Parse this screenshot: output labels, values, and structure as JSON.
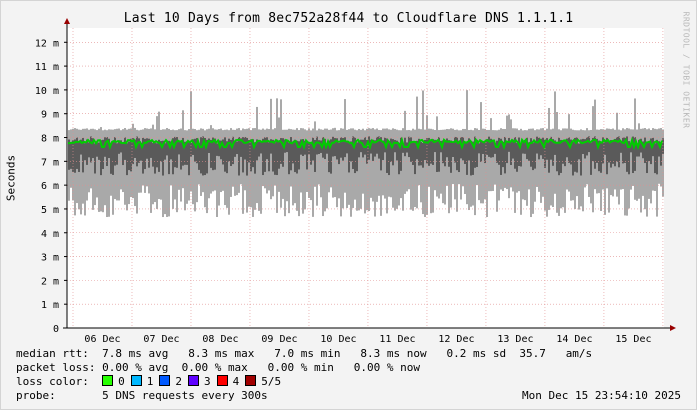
{
  "chart_data": {
    "type": "area",
    "title": "Last 10 Days from 8ec752a28f44 to Cloudflare DNS 1.1.1.1",
    "ylabel": "Seconds",
    "xlabel": "",
    "ylim": [
      0,
      12.6
    ],
    "y_ticks": [
      {
        "value": 0,
        "label": "0"
      },
      {
        "value": 1,
        "label": "1 m"
      },
      {
        "value": 2,
        "label": "2 m"
      },
      {
        "value": 3,
        "label": "3 m"
      },
      {
        "value": 4,
        "label": "4 m"
      },
      {
        "value": 5,
        "label": "5 m"
      },
      {
        "value": 6,
        "label": "6 m"
      },
      {
        "value": 7,
        "label": "7 m"
      },
      {
        "value": 8,
        "label": "8 m"
      },
      {
        "value": 9,
        "label": "9 m"
      },
      {
        "value": 10,
        "label": "10 m"
      },
      {
        "value": 11,
        "label": "11 m"
      },
      {
        "value": 12,
        "label": "12 m"
      }
    ],
    "categories": [
      "06 Dec",
      "07 Dec",
      "08 Dec",
      "09 Dec",
      "10 Dec",
      "11 Dec",
      "12 Dec",
      "13 Dec",
      "14 Dec",
      "15 Dec"
    ],
    "grid": true,
    "median_ms_approx": 7.8,
    "ping_band_ms_approx": {
      "low": 5.5,
      "high": 8.3
    },
    "colors": {
      "median_line": "#00cc00",
      "smoke_light": "#a9a9a9",
      "smoke_dark": "#5a5a5a",
      "grid": "#e08f8f",
      "axis": "#000000",
      "arrow": "#990000"
    }
  },
  "stats": {
    "median_rtt_label": "median rtt:",
    "median_rtt_values": "7.8 ms avg   8.3 ms max   7.0 ms min   8.3 ms now   0.2 ms sd  35.7   am/s",
    "packet_loss_label": "packet loss:",
    "packet_loss_values": "0.00 % avg  0.00 % max   0.00 % min   0.00 % now",
    "loss_color_label": "loss color:",
    "loss_colors": [
      {
        "label": "0",
        "color": "#26ff00"
      },
      {
        "label": "1",
        "color": "#00b8ff"
      },
      {
        "label": "2",
        "color": "#0059ff"
      },
      {
        "label": "3",
        "color": "#5e00ff"
      },
      {
        "label": "4",
        "color": "#ff0000"
      },
      {
        "label": "5/5",
        "color": "#a10000"
      }
    ],
    "probe_label": "probe:",
    "probe_value": "5 DNS requests every 300s",
    "timestamp": "Mon Dec 15 23:54:10 2025"
  },
  "watermark": "RRDTOOL / TOBI OETIKER"
}
